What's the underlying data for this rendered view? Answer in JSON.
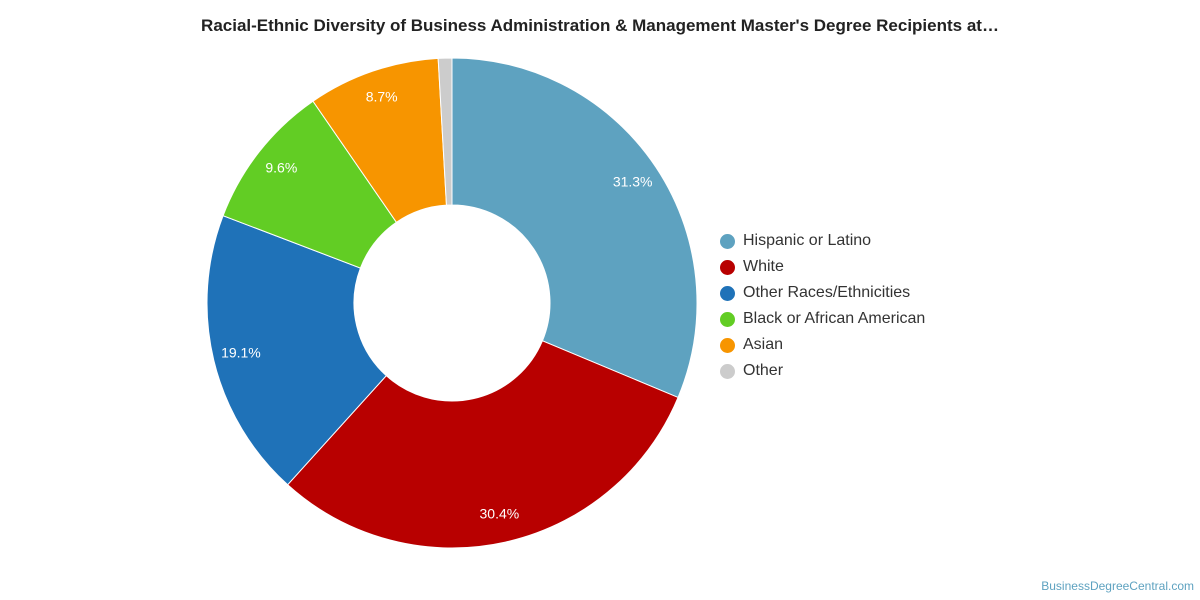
{
  "chart_data": {
    "type": "pie",
    "variant": "donut",
    "title": "Racial-Ethnic Diversity of Business Administration & Management Master's Degree Recipients at…",
    "categories": [
      "Hispanic or Latino",
      "White",
      "Other Races/Ethnicities",
      "Black or African American",
      "Asian",
      "Other"
    ],
    "values": [
      31.3,
      30.4,
      19.1,
      9.6,
      8.7,
      0.9
    ],
    "data_labels": [
      "31.3%",
      "30.4%",
      "19.1%",
      "9.6%",
      "8.7%",
      ""
    ],
    "colors": [
      "#5ea2c0",
      "#b80000",
      "#1f72b8",
      "#62cd24",
      "#f79500",
      "#cccccc"
    ],
    "legend_position": "right",
    "grid": false
  },
  "source": "BusinessDegreeCentral.com"
}
